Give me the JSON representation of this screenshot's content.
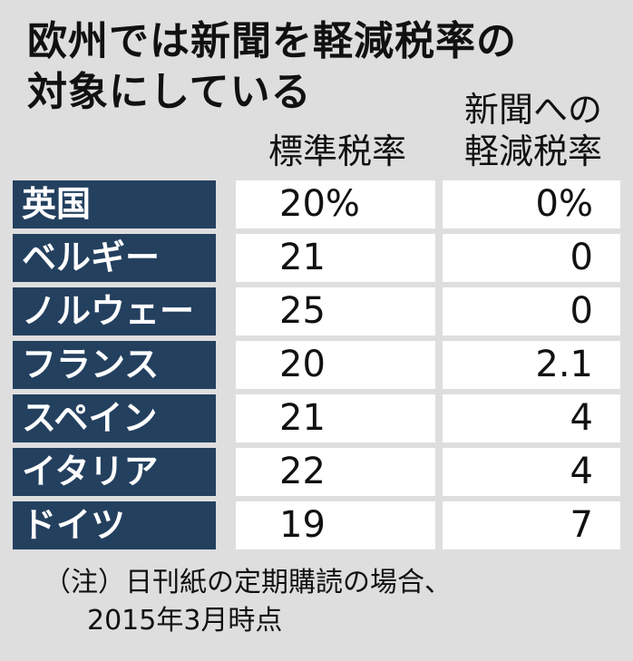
{
  "title_line1": "欧州では新聞を軽減税率の",
  "title_line2": "対象にしている",
  "columns": {
    "standard": "標準税率",
    "reduced_line1": "新聞への",
    "reduced_line2": "軽減税率"
  },
  "chart_data": {
    "type": "table",
    "columns": [
      "標準税率",
      "新聞への軽減税率"
    ],
    "rows": [
      {
        "country": "英国",
        "standard": "20%",
        "reduced": "0%"
      },
      {
        "country": "ベルギー",
        "standard": "21",
        "reduced": "0"
      },
      {
        "country": "ノルウェー",
        "standard": "25",
        "reduced": "0"
      },
      {
        "country": "フランス",
        "standard": "20",
        "reduced": "2.1"
      },
      {
        "country": "スペイン",
        "standard": "21",
        "reduced": "4"
      },
      {
        "country": "イタリア",
        "standard": "22",
        "reduced": "4"
      },
      {
        "country": "ドイツ",
        "standard": "19",
        "reduced": "7"
      }
    ]
  },
  "note_line1": "（注）日刊紙の定期購読の場合、",
  "note_line2": "2015年3月時点",
  "colors": {
    "background": "#dededf",
    "country_cell": "#24405f",
    "value_cell": "#ffffff"
  }
}
